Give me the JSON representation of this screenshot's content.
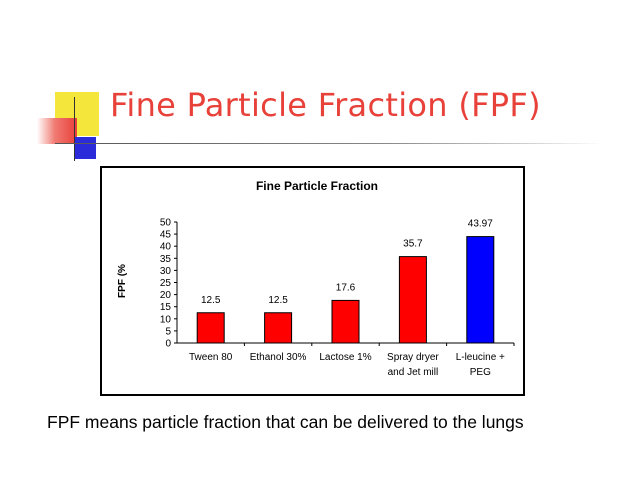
{
  "slide": {
    "title": "Fine Particle Fraction (FPF)",
    "caption": "FPF means particle fraction that can be delivered to the lungs",
    "colors": {
      "title": "#e8413a",
      "deco_yellow": "#f5e63c",
      "deco_red": "#e8413a",
      "deco_blue": "#2b2bd9"
    }
  },
  "chart_data": {
    "type": "bar",
    "title": "Fine Particle Fraction",
    "ylabel": "FPF (%",
    "xlabel": "",
    "ylim": [
      0,
      50
    ],
    "yticks": [
      0,
      5,
      10,
      15,
      20,
      25,
      30,
      35,
      40,
      45,
      50
    ],
    "categories": [
      [
        "Tween 80"
      ],
      [
        "Ethanol 30%"
      ],
      [
        "Lactose 1%"
      ],
      [
        "Spray dryer",
        "and Jet mill"
      ],
      [
        "L-leucine +",
        "PEG"
      ]
    ],
    "values": [
      12.5,
      12.5,
      17.6,
      35.7,
      43.97
    ],
    "data_labels": [
      "12.5",
      "12.5",
      "17.6",
      "35.7",
      "43.97"
    ],
    "bar_colors": [
      "#ff0000",
      "#ff0000",
      "#ff0000",
      "#ff0000",
      "#0000ff"
    ],
    "grid": false,
    "legend": "none"
  }
}
